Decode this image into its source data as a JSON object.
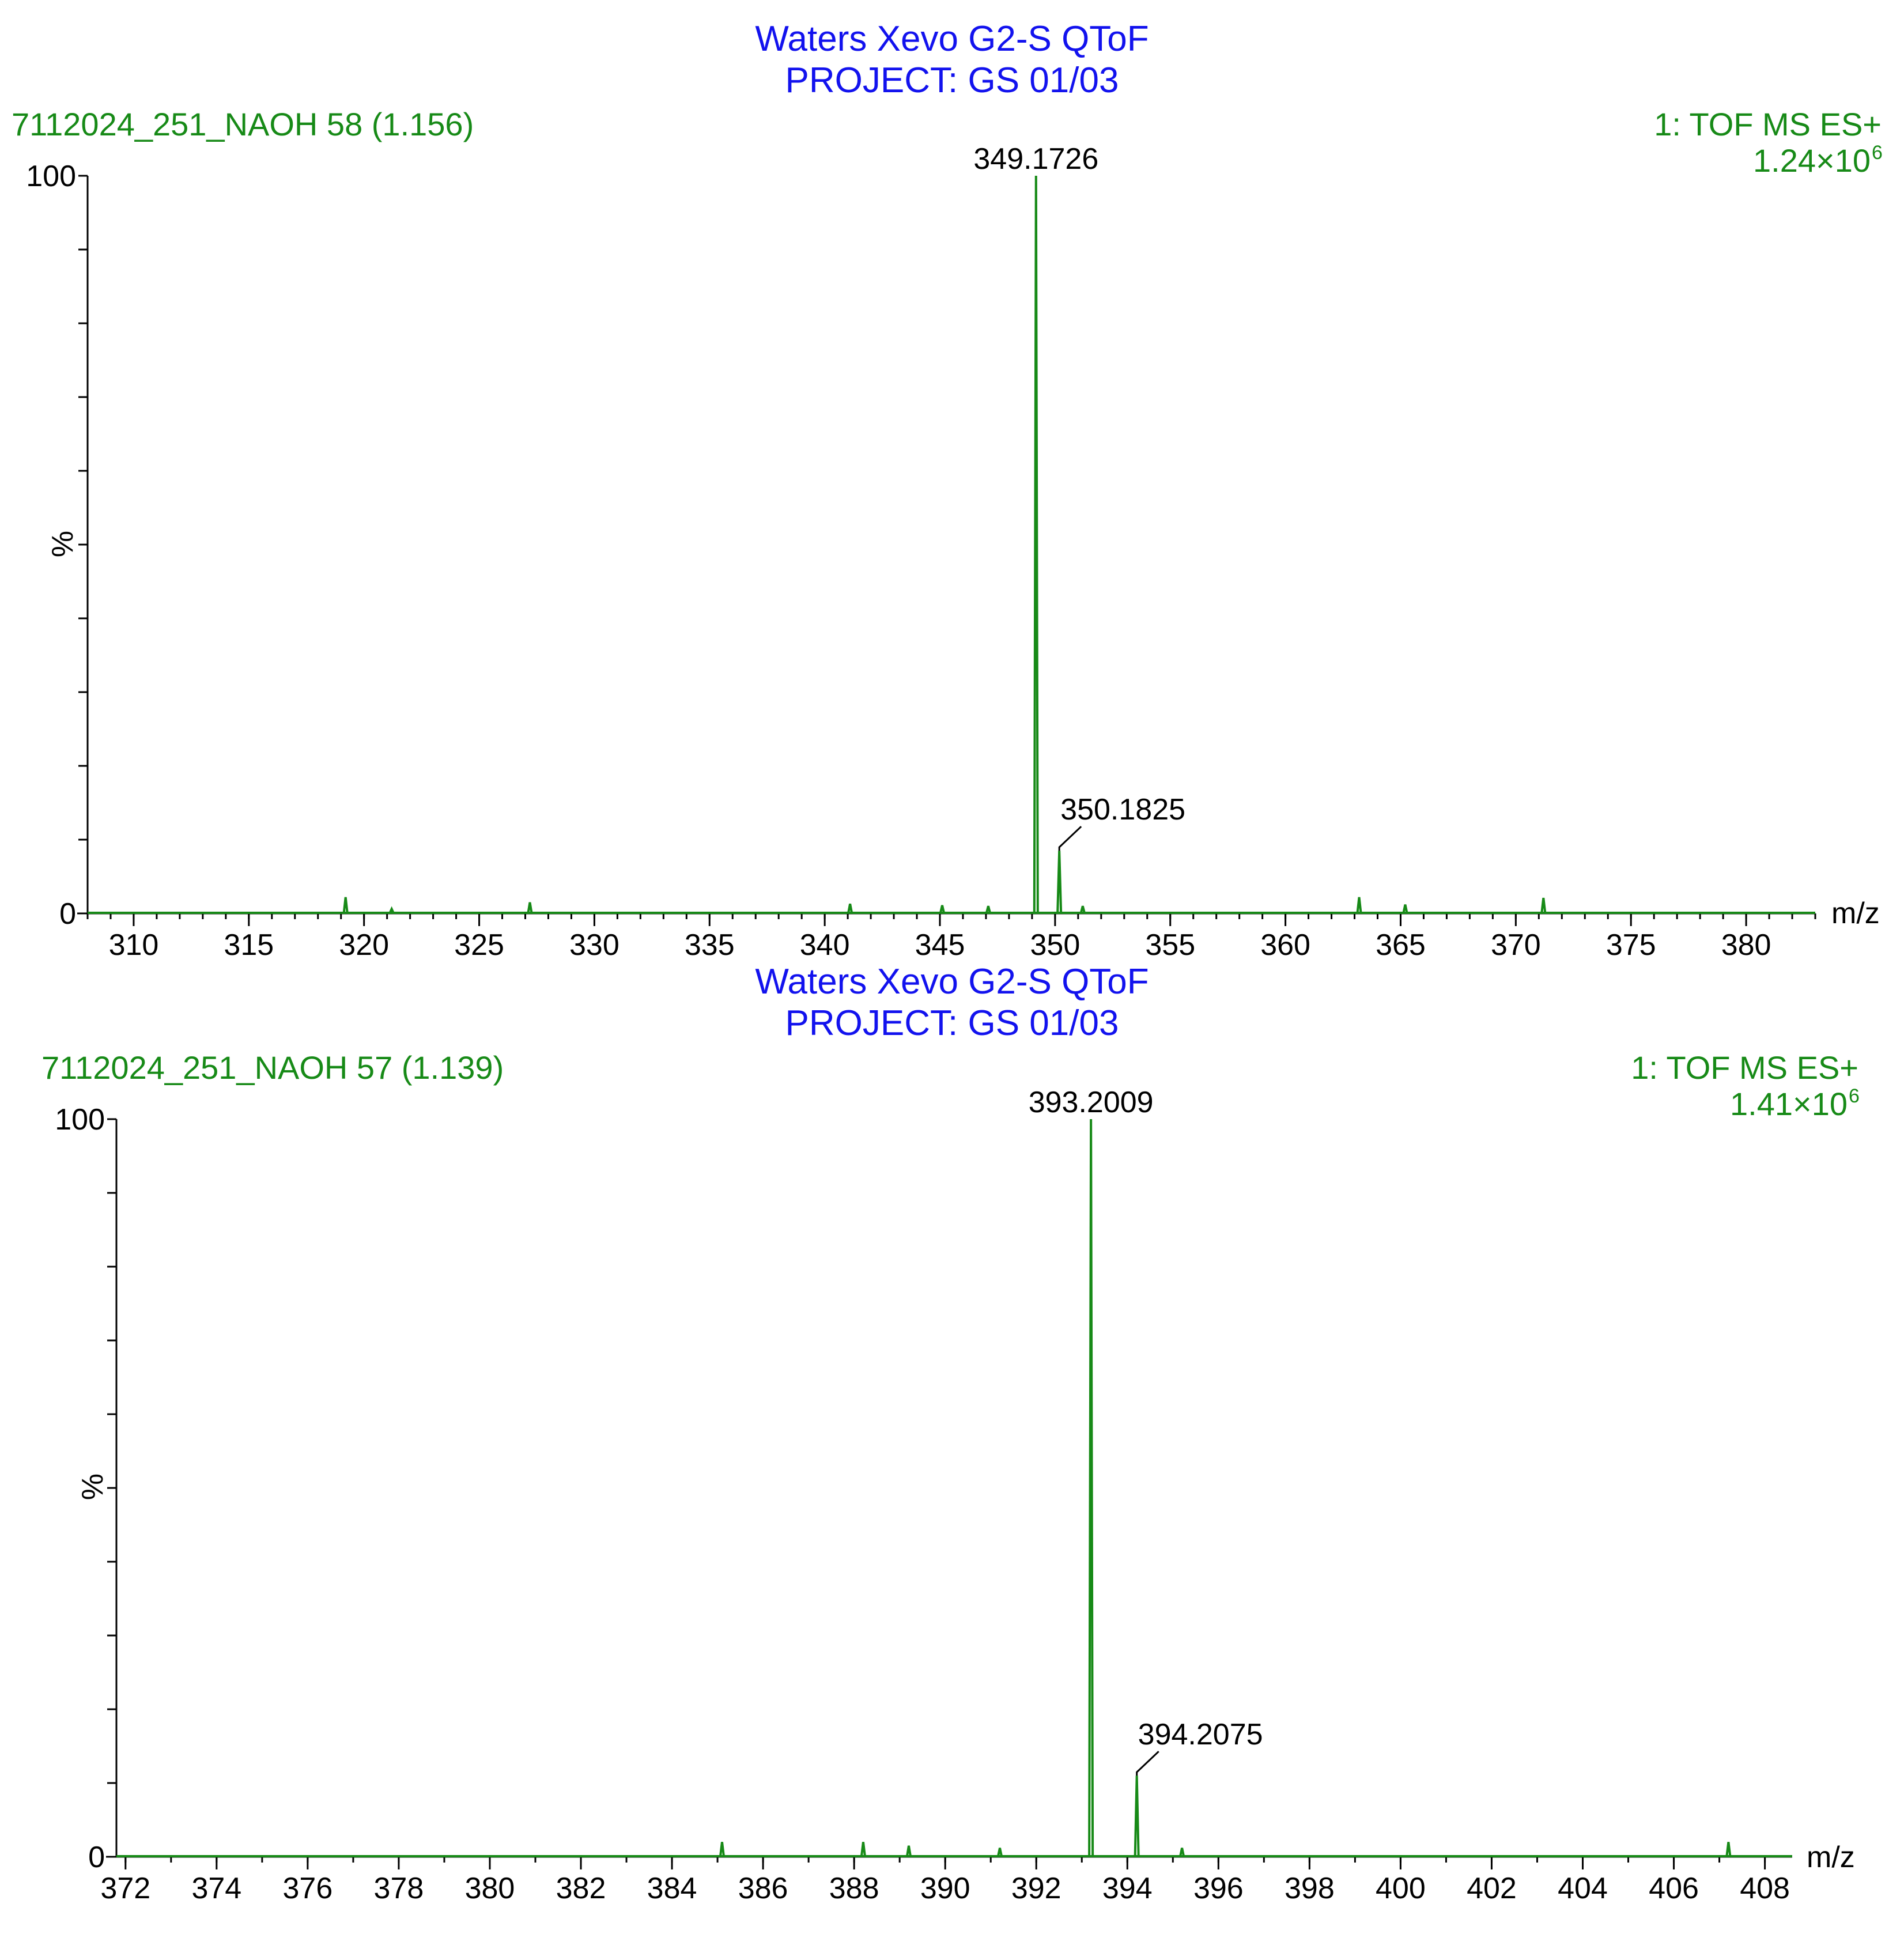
{
  "colors": {
    "title": "#1212ee",
    "meta": "#178a17",
    "spectrum": "#178a17",
    "axis": "#000000"
  },
  "chart_data": [
    {
      "type": "line",
      "title": "Waters Xevo G2-S QToF",
      "subtitle": "PROJECT: GS 01/03",
      "sample_label": "7112024_251_NAOH 58 (1.156)",
      "mode_label": "1: TOF MS ES+",
      "intensity_label": "1.24×10",
      "intensity_exponent": "6",
      "xlabel": "m/z",
      "ylabel": "%",
      "xlim": [
        308,
        383
      ],
      "ylim": [
        0,
        100
      ],
      "x_ticks": [
        310,
        315,
        320,
        325,
        330,
        335,
        340,
        345,
        350,
        355,
        360,
        365,
        370,
        375,
        380
      ],
      "x_minor_step": 1,
      "y_ticks": [
        0,
        100
      ],
      "y_minor_step": 10,
      "peaks": [
        {
          "x": 319.2,
          "y": 2.2
        },
        {
          "x": 321.2,
          "y": 0.6
        },
        {
          "x": 327.2,
          "y": 1.5
        },
        {
          "x": 341.1,
          "y": 1.3
        },
        {
          "x": 345.1,
          "y": 1.1
        },
        {
          "x": 347.1,
          "y": 1.0
        },
        {
          "x": 349.1726,
          "y": 100
        },
        {
          "x": 350.1825,
          "y": 8.5
        },
        {
          "x": 351.2,
          "y": 1.0
        },
        {
          "x": 363.2,
          "y": 2.2
        },
        {
          "x": 365.2,
          "y": 1.2
        },
        {
          "x": 371.2,
          "y": 2.1
        }
      ],
      "annotations": [
        {
          "label": "349.1726",
          "x": 349.1726,
          "y": 100
        },
        {
          "label": "350.1825",
          "x": 350.1825,
          "y": 8.5
        }
      ]
    },
    {
      "type": "line",
      "title": "Waters Xevo G2-S QToF",
      "subtitle": "PROJECT: GS 01/03",
      "sample_label": "7112024_251_NAOH 57 (1.139)",
      "mode_label": "1: TOF MS ES+",
      "intensity_label": "1.41×10",
      "intensity_exponent": "6",
      "xlabel": "m/z",
      "ylabel": "%",
      "xlim": [
        371.8,
        408.6
      ],
      "ylim": [
        0,
        100
      ],
      "x_ticks": [
        372,
        374,
        376,
        378,
        380,
        382,
        384,
        386,
        388,
        390,
        392,
        394,
        396,
        398,
        400,
        402,
        404,
        406,
        408
      ],
      "x_minor_step": 1,
      "y_ticks": [
        0,
        100
      ],
      "y_minor_step": 10,
      "peaks": [
        {
          "x": 385.1,
          "y": 2.0
        },
        {
          "x": 388.2,
          "y": 2.0
        },
        {
          "x": 389.2,
          "y": 1.5
        },
        {
          "x": 391.2,
          "y": 1.2
        },
        {
          "x": 393.2009,
          "y": 100
        },
        {
          "x": 394.2075,
          "y": 11
        },
        {
          "x": 395.2,
          "y": 1.2
        },
        {
          "x": 407.2,
          "y": 2.0
        }
      ],
      "annotations": [
        {
          "label": "393.2009",
          "x": 393.2009,
          "y": 100
        },
        {
          "label": "394.2075",
          "x": 394.2075,
          "y": 11
        }
      ]
    }
  ]
}
